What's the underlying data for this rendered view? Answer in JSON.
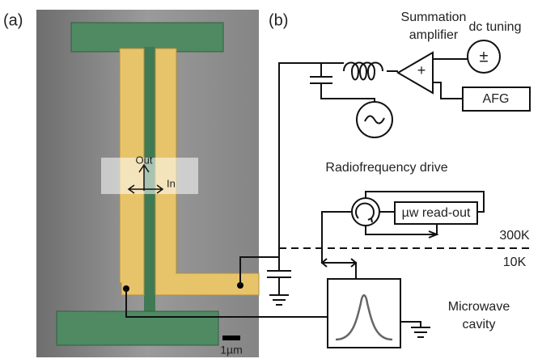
{
  "panel_a": {
    "label": "(a)",
    "arrow_out": "Out",
    "arrow_in": "In",
    "scale_bar": "1µm"
  },
  "panel_b": {
    "label": "(b)",
    "amplifier": [
      "Summation",
      "amplifier"
    ],
    "amplifier_sign": "+",
    "dc_source": "dc tuning",
    "dc_symbol": "±",
    "afg": "AFG",
    "rf_source": "Radiofrequency drive",
    "readout": "µw read-out",
    "temp_high": "300K",
    "temp_low": "10K",
    "cavity": [
      "Microwave",
      "cavity"
    ]
  }
}
